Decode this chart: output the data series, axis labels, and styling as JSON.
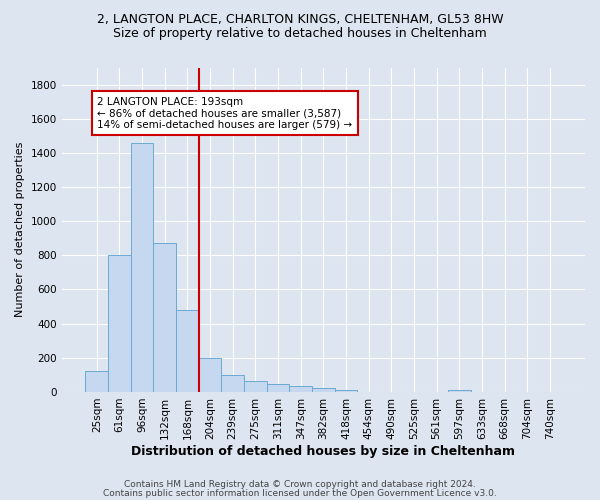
{
  "title1": "2, LANGTON PLACE, CHARLTON KINGS, CHELTENHAM, GL53 8HW",
  "title2": "Size of property relative to detached houses in Cheltenham",
  "xlabel": "Distribution of detached houses by size in Cheltenham",
  "ylabel": "Number of detached properties",
  "categories": [
    "25sqm",
    "61sqm",
    "96sqm",
    "132sqm",
    "168sqm",
    "204sqm",
    "239sqm",
    "275sqm",
    "311sqm",
    "347sqm",
    "382sqm",
    "418sqm",
    "454sqm",
    "490sqm",
    "525sqm",
    "561sqm",
    "597sqm",
    "633sqm",
    "668sqm",
    "704sqm",
    "740sqm"
  ],
  "values": [
    120,
    800,
    1460,
    870,
    480,
    200,
    100,
    65,
    45,
    32,
    22,
    10,
    0,
    0,
    0,
    0,
    10,
    0,
    0,
    0,
    0
  ],
  "bar_color": "#c5d8f0",
  "bar_edge_color": "#6aaad4",
  "bar_width": 1.0,
  "vline_x": 4.5,
  "vline_color": "#cc0000",
  "annotation_text": "2 LANGTON PLACE: 193sqm\n← 86% of detached houses are smaller (3,587)\n14% of semi-detached houses are larger (579) →",
  "ylim": [
    0,
    1900
  ],
  "yticks": [
    0,
    200,
    400,
    600,
    800,
    1000,
    1200,
    1400,
    1600,
    1800
  ],
  "background_color": "#dde5f0",
  "plot_bg_color": "#dde5f0",
  "footnote1": "Contains HM Land Registry data © Crown copyright and database right 2024.",
  "footnote2": "Contains public sector information licensed under the Open Government Licence v3.0.",
  "title1_fontsize": 9,
  "title2_fontsize": 9,
  "xlabel_fontsize": 9,
  "ylabel_fontsize": 8,
  "tick_fontsize": 7.5,
  "annotation_fontsize": 7.5,
  "footnote_fontsize": 6.5
}
